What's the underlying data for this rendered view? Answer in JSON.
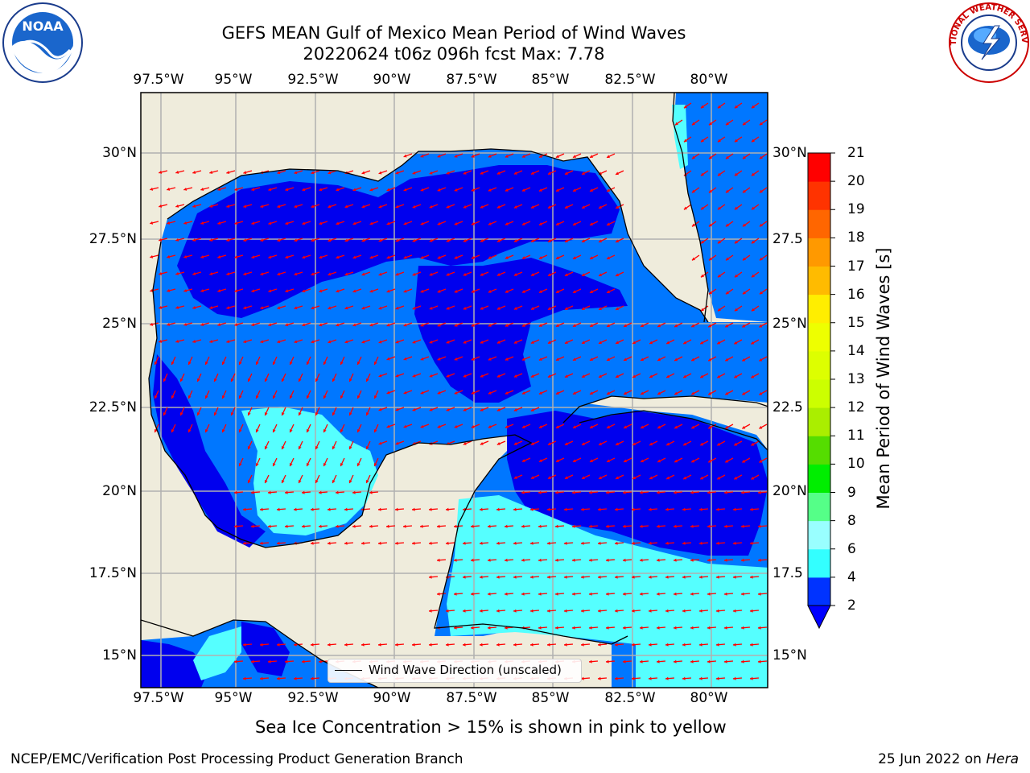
{
  "header": {
    "title_line1": "GEFS MEAN Gulf of Mexico Mean Period of Wind Waves",
    "title_line2": "20220624 t06z 096h fcst   Max: 7.78"
  },
  "logos": {
    "left": {
      "name": "noaa-logo",
      "text": "NOAA"
    },
    "right": {
      "name": "national-weather-service-logo",
      "text": "NATIONAL WEATHER SERVICE"
    }
  },
  "axes": {
    "x_ticks": [
      "97.5°W",
      "95°W",
      "92.5°W",
      "90°W",
      "87.5°W",
      "85°W",
      "82.5°W",
      "80°W"
    ],
    "y_ticks_left": [
      "30°N",
      "27.5°N",
      "25°N",
      "22.5°N",
      "20°N",
      "17.5°N",
      "15°N"
    ],
    "y_ticks_right": [
      "30°N",
      "27.5",
      "25°N",
      "22.5",
      "20°N",
      "17.5",
      "15°N"
    ]
  },
  "legend": {
    "line_label": "Wind Wave Direction (unscaled)"
  },
  "colorbar": {
    "label": "Mean Period of Wind Waves [s]",
    "ticks": [
      "2",
      "4",
      "6",
      "8",
      "9",
      "10",
      "11",
      "12",
      "13",
      "14",
      "15",
      "16",
      "17",
      "18",
      "19",
      "20",
      "21"
    ],
    "colors": [
      "#0033ff",
      "#00e5ff",
      "#33ffff",
      "#99ffff",
      "#55ff88",
      "#00ee00",
      "#55dd00",
      "#aaee00",
      "#ccff00",
      "#ddff00",
      "#eeff00",
      "#ffee00",
      "#ffbb00",
      "#ff9900",
      "#ff6600",
      "#ff3300",
      "#ff0000"
    ],
    "extend_color": "#0000ff"
  },
  "map_colors": {
    "land": "#efecdc",
    "period_2_4": "#0077ff",
    "period_lt_2": "#0000ee",
    "period_4_6": "#00ffff",
    "period_6_8": "#55ffff",
    "arrow": "#ff0000",
    "grid": "#b0b0b0"
  },
  "caption": "Sea Ice Concentration > 15% is shown in pink to yellow",
  "footer": {
    "left": "NCEP/EMC/Verification Post Processing Product Generation Branch",
    "right_date": "25 Jun 2022 on ",
    "right_machine": "Hera"
  }
}
